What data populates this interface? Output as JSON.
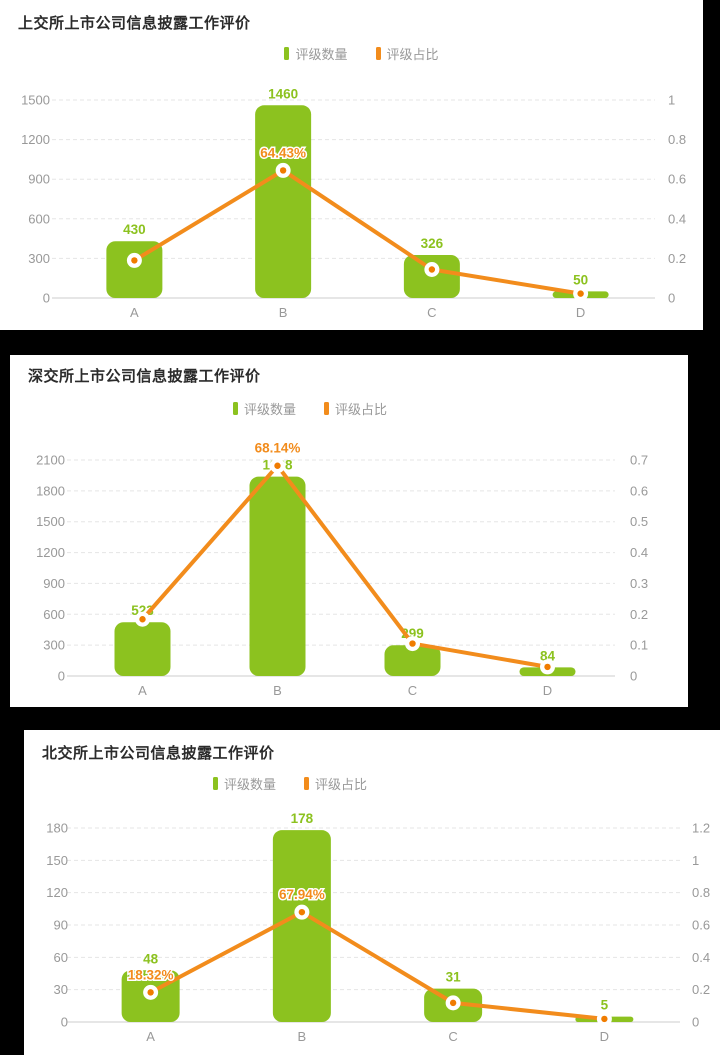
{
  "colors": {
    "bar": "#8CC21F",
    "bar_label": "#8CC21F",
    "line": "#F28C1C",
    "point_inner": "#F07C00",
    "axis_text": "#999999",
    "grid": "#E5E5E5",
    "axis_line": "#CCCCCC",
    "title": "#2B2B2B",
    "legend_text": "#999999",
    "panel_bg": "#FFFFFF",
    "page_bg": "#000000"
  },
  "legend": {
    "count_label": "评级数量",
    "ratio_label": "评级占比"
  },
  "chart_data": [
    {
      "type": "bar+line",
      "title": "上交所上市公司信息披露工作评价",
      "categories": [
        "A",
        "B",
        "C",
        "D"
      ],
      "series": [
        {
          "name": "评级数量",
          "type": "bar",
          "values": [
            430,
            1460,
            326,
            50
          ]
        },
        {
          "name": "评级占比",
          "type": "line",
          "values": [
            0.1898,
            0.6443,
            0.1439,
            0.0221
          ],
          "labels": [
            null,
            "64.43%",
            null,
            null
          ]
        }
      ],
      "bar_labels": [
        "430",
        "1460",
        "326",
        "50"
      ],
      "left_axis": {
        "ticks": [
          "0",
          "300",
          "600",
          "900",
          "1200",
          "1500"
        ],
        "max": 1500
      },
      "right_axis": {
        "ticks": [
          "0",
          "0.2",
          "0.4",
          "0.6",
          "0.8",
          "1"
        ],
        "max": 1
      },
      "legend_position": "top-center",
      "grid": true
    },
    {
      "type": "bar+line",
      "title": "深交所上市公司信息披露工作评价",
      "categories": [
        "A",
        "B",
        "C",
        "D"
      ],
      "series": [
        {
          "name": "评级数量",
          "type": "bar",
          "values": [
            523,
            1938,
            299,
            84
          ]
        },
        {
          "name": "评级占比",
          "type": "line",
          "values": [
            0.1839,
            0.6814,
            0.1051,
            0.0295
          ],
          "labels": [
            null,
            "68.14%",
            null,
            null
          ]
        }
      ],
      "bar_labels": [
        "523",
        "1938",
        "299",
        "84"
      ],
      "left_axis": {
        "ticks": [
          "0",
          "300",
          "600",
          "900",
          "1200",
          "1500",
          "1800",
          "2100"
        ],
        "max": 2100
      },
      "right_axis": {
        "ticks": [
          "0",
          "0.1",
          "0.2",
          "0.3",
          "0.4",
          "0.5",
          "0.6",
          "0.7"
        ],
        "max": 0.7
      },
      "legend_position": "top-center",
      "grid": true
    },
    {
      "type": "bar+line",
      "title": "北交所上市公司信息披露工作评价",
      "categories": [
        "A",
        "B",
        "C",
        "D"
      ],
      "series": [
        {
          "name": "评级数量",
          "type": "bar",
          "values": [
            48,
            178,
            31,
            5
          ]
        },
        {
          "name": "评级占比",
          "type": "line",
          "values": [
            0.1832,
            0.6794,
            0.1183,
            0.0191
          ],
          "labels": [
            "18.32%",
            "67.94%",
            null,
            null
          ]
        }
      ],
      "bar_labels": [
        "48",
        "178",
        "31",
        "5"
      ],
      "left_axis": {
        "ticks": [
          "0",
          "30",
          "60",
          "90",
          "120",
          "150",
          "180"
        ],
        "max": 180
      },
      "right_axis": {
        "ticks": [
          "0",
          "0.2",
          "0.4",
          "0.6",
          "0.8",
          "1",
          "1.2"
        ],
        "max": 1.2
      },
      "legend_position": "top-center",
      "grid": true
    }
  ]
}
